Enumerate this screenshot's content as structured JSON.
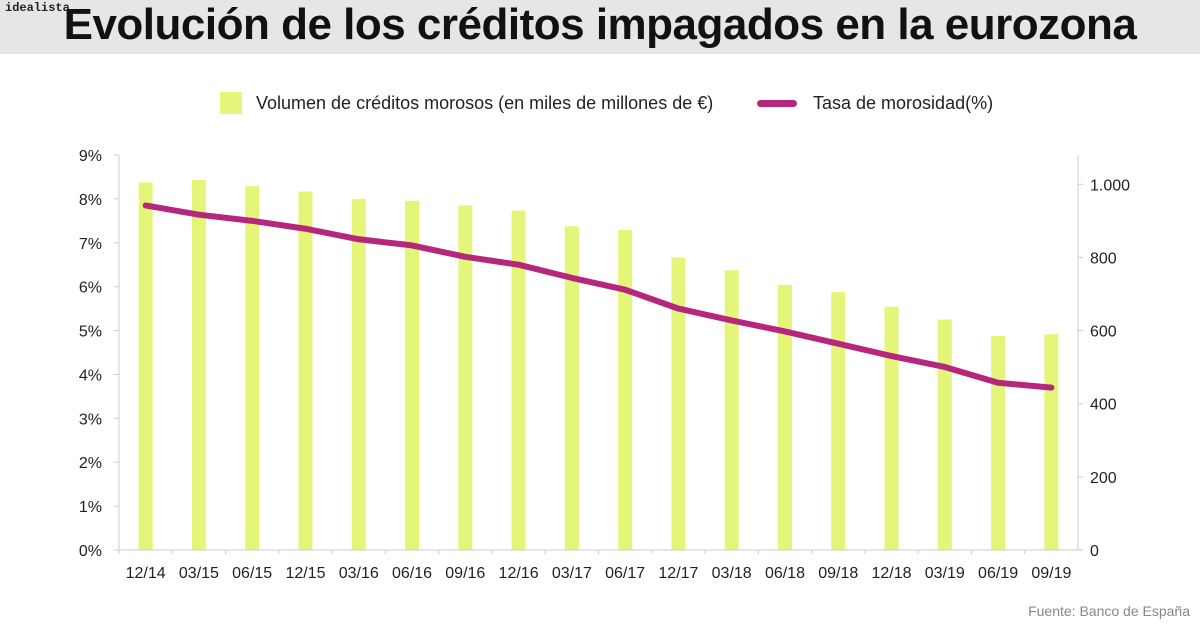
{
  "brand": "idealista",
  "title": "Evolución de los créditos impagados en la eurozona",
  "source": "Fuente: Banco de España",
  "colors": {
    "bars": "#e4f57a",
    "line": "#b5267c",
    "axis": "#cccccc",
    "header": "#e6e6e6"
  },
  "chart_data": {
    "type": "bar+line",
    "title": "Evolución de los créditos impagados en la eurozona",
    "categories": [
      "12/14",
      "03/15",
      "06/15",
      "12/15",
      "03/16",
      "06/16",
      "09/16",
      "12/16",
      "03/17",
      "06/17",
      "12/17",
      "03/18",
      "06/18",
      "09/18",
      "12/18",
      "03/19",
      "06/19",
      "09/19"
    ],
    "series": [
      {
        "name": "Volumen de créditos morosos (en miles de millones de €)",
        "type": "bar",
        "axis": "right",
        "values": [
          1005,
          1012,
          995,
          980,
          960,
          955,
          942,
          928,
          885,
          875,
          800,
          765,
          725,
          705,
          665,
          630,
          585,
          590
        ]
      },
      {
        "name": "Tasa de morosidad(%)",
        "type": "line",
        "axis": "left",
        "values": [
          7.85,
          7.64,
          7.5,
          7.32,
          7.08,
          6.94,
          6.68,
          6.5,
          6.2,
          5.93,
          5.5,
          5.23,
          4.98,
          4.7,
          4.42,
          4.17,
          3.81,
          3.7
        ]
      }
    ],
    "y_left": {
      "ylim": [
        0,
        9
      ],
      "ticks": [
        "0%",
        "1%",
        "2%",
        "3%",
        "4%",
        "5%",
        "6%",
        "7%",
        "8%",
        "9%"
      ]
    },
    "y_right": {
      "ylim": [
        0,
        1080
      ],
      "ticks": [
        {
          "v": 0,
          "label": "0"
        },
        {
          "v": 200,
          "label": "200"
        },
        {
          "v": 400,
          "label": "400"
        },
        {
          "v": 600,
          "label": "600"
        },
        {
          "v": 800,
          "label": "800"
        },
        {
          "v": 1000,
          "label": "1.000"
        }
      ]
    },
    "legend": "top-center",
    "grid": false
  }
}
